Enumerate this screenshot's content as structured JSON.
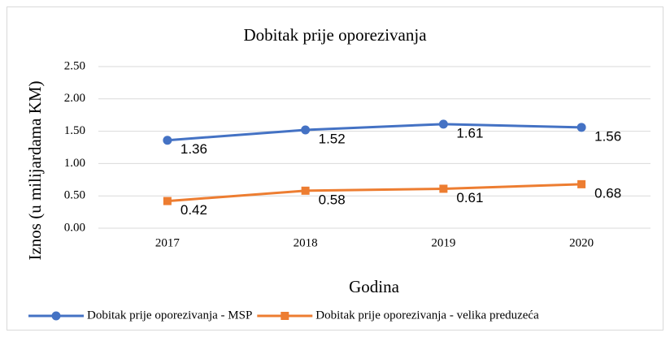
{
  "chart_data": {
    "type": "line",
    "title": "Dobitak prije oporezivanja",
    "x_label": "Godina",
    "y_label": "Iznos (u milijardama KM)",
    "categories": [
      "2017",
      "2018",
      "2019",
      "2020"
    ],
    "series": [
      {
        "name": "Dobitak prije oporezivanja - MSP",
        "color": "#4472c4",
        "marker": "circle",
        "values": [
          1.36,
          1.52,
          1.61,
          1.56
        ]
      },
      {
        "name": "Dobitak prije oporezivanja - velika preduzeća",
        "color": "#ed7d31",
        "marker": "square",
        "values": [
          0.42,
          0.58,
          0.61,
          0.68
        ]
      }
    ],
    "ylim": [
      0,
      2.5
    ],
    "yticks": [
      {
        "value": 0,
        "label": "0.00"
      },
      {
        "value": 0.5,
        "label": "0.50"
      },
      {
        "value": 1,
        "label": "1.00"
      },
      {
        "value": 1.5,
        "label": "1.50"
      },
      {
        "value": 2,
        "label": "2.00"
      },
      {
        "value": 2.5,
        "label": "2.50"
      }
    ],
    "grid": true,
    "legend": "bottom"
  }
}
